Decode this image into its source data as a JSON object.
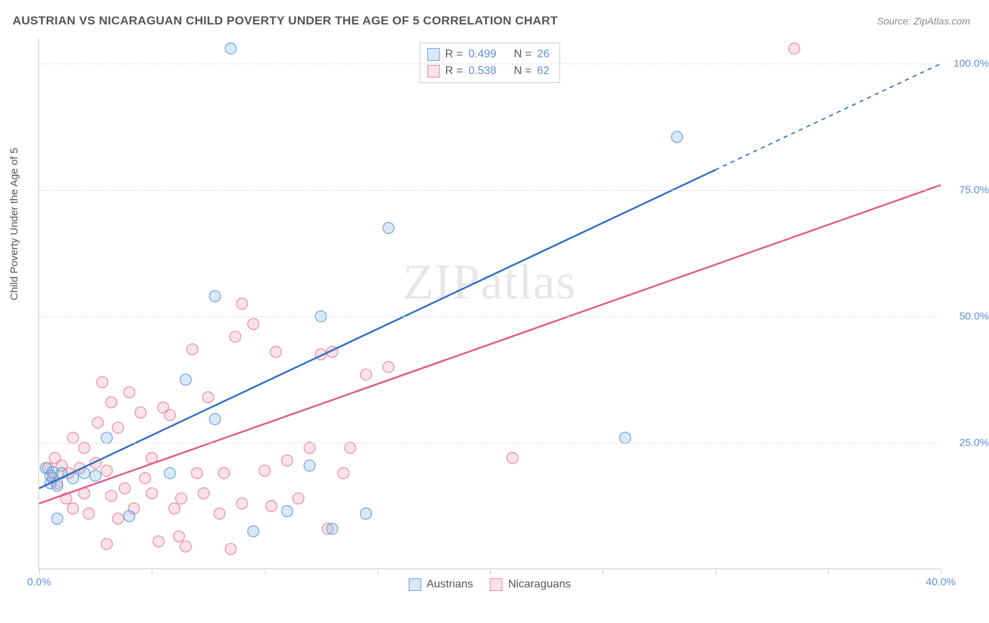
{
  "title": "AUSTRIAN VS NICARAGUAN CHILD POVERTY UNDER THE AGE OF 5 CORRELATION CHART",
  "source_prefix": "Source: ",
  "source_name": "ZipAtlas.com",
  "watermark": "ZIPatlas",
  "y_axis_label": "Child Poverty Under the Age of 5",
  "chart": {
    "type": "scatter",
    "background_color": "#ffffff",
    "grid_color": "#dddddd",
    "axis_color": "#cccccc",
    "xlim": [
      0,
      40
    ],
    "ylim": [
      0,
      105
    ],
    "x_ticks": [
      0,
      5,
      10,
      15,
      20,
      25,
      30,
      35,
      40
    ],
    "x_tick_labels": {
      "0": "0.0%",
      "40": "40.0%"
    },
    "y_ticks": [
      25,
      50,
      75,
      100
    ],
    "y_tick_labels": {
      "25": "25.0%",
      "50": "50.0%",
      "75": "75.0%",
      "100": "100.0%"
    },
    "marker_radius": 8,
    "marker_stroke_width": 1.2,
    "marker_fill_opacity": 0.25,
    "line_width": 2.5,
    "series": [
      {
        "key": "austrians",
        "label": "Austrians",
        "color": "#6aa2de",
        "line_color": "#2e6fc4",
        "r_value": "0.499",
        "n_value": "26",
        "trend": {
          "x1": 0,
          "y1": 16,
          "x2": 30,
          "y2": 79,
          "dash_from_x": 30,
          "dash_to_x": 40,
          "dash_to_y": 100
        },
        "points": [
          [
            0.3,
            20
          ],
          [
            0.5,
            18.5
          ],
          [
            0.6,
            19.2
          ],
          [
            0.8,
            16.5
          ],
          [
            0.8,
            10
          ],
          [
            1.0,
            19
          ],
          [
            1.5,
            18
          ],
          [
            2.0,
            19
          ],
          [
            2.5,
            18.5
          ],
          [
            4.0,
            10.5
          ],
          [
            3.0,
            26
          ],
          [
            5.8,
            19
          ],
          [
            6.5,
            37.5
          ],
          [
            7.8,
            29.7
          ],
          [
            7.8,
            54
          ],
          [
            8.5,
            103
          ],
          [
            9.5,
            7.5
          ],
          [
            11.0,
            11.5
          ],
          [
            12.0,
            20.5
          ],
          [
            12.5,
            50
          ],
          [
            13.0,
            8
          ],
          [
            14.5,
            11
          ],
          [
            15.5,
            67.5
          ],
          [
            26.0,
            26
          ],
          [
            28.3,
            85.5
          ],
          [
            0.5,
            17
          ]
        ]
      },
      {
        "key": "nicaraguans",
        "label": "Nicaraguans",
        "color": "#e88aa4",
        "line_color": "#e05a82",
        "r_value": "0.538",
        "n_value": "62",
        "trend": {
          "x1": 0,
          "y1": 13,
          "x2": 40,
          "y2": 76
        },
        "points": [
          [
            0.4,
            20
          ],
          [
            0.6,
            18
          ],
          [
            0.7,
            22
          ],
          [
            0.8,
            17
          ],
          [
            1.0,
            20.5
          ],
          [
            1.2,
            14
          ],
          [
            1.3,
            19
          ],
          [
            1.5,
            26
          ],
          [
            1.5,
            12
          ],
          [
            1.8,
            20
          ],
          [
            2.0,
            15
          ],
          [
            2.0,
            24
          ],
          [
            2.2,
            11
          ],
          [
            2.5,
            21
          ],
          [
            2.6,
            29
          ],
          [
            2.8,
            37
          ],
          [
            3.0,
            5
          ],
          [
            3.0,
            19.5
          ],
          [
            3.2,
            14.5
          ],
          [
            3.2,
            33
          ],
          [
            3.5,
            10
          ],
          [
            3.5,
            28
          ],
          [
            3.8,
            16
          ],
          [
            4.0,
            35
          ],
          [
            4.2,
            12
          ],
          [
            4.5,
            31
          ],
          [
            4.7,
            18
          ],
          [
            5.0,
            15
          ],
          [
            5.0,
            22
          ],
          [
            5.3,
            5.5
          ],
          [
            5.5,
            32
          ],
          [
            5.8,
            30.5
          ],
          [
            6.0,
            12
          ],
          [
            6.3,
            14
          ],
          [
            6.5,
            4.5
          ],
          [
            6.8,
            43.5
          ],
          [
            7.0,
            19
          ],
          [
            7.3,
            15
          ],
          [
            7.5,
            34
          ],
          [
            8.0,
            11
          ],
          [
            8.2,
            19
          ],
          [
            8.5,
            4
          ],
          [
            8.7,
            46
          ],
          [
            9.0,
            13
          ],
          [
            9.0,
            52.5
          ],
          [
            9.5,
            48.5
          ],
          [
            10.0,
            19.5
          ],
          [
            10.3,
            12.5
          ],
          [
            10.5,
            43
          ],
          [
            11.0,
            21.5
          ],
          [
            11.5,
            14
          ],
          [
            12.0,
            24
          ],
          [
            12.5,
            42.5
          ],
          [
            12.8,
            8
          ],
          [
            13.0,
            43
          ],
          [
            13.5,
            19
          ],
          [
            13.8,
            24
          ],
          [
            14.5,
            38.5
          ],
          [
            15.5,
            40
          ],
          [
            21.0,
            22
          ],
          [
            33.5,
            103
          ],
          [
            6.2,
            6.5
          ]
        ]
      }
    ],
    "legend_labels": {
      "r": "R =",
      "n": "N ="
    }
  }
}
